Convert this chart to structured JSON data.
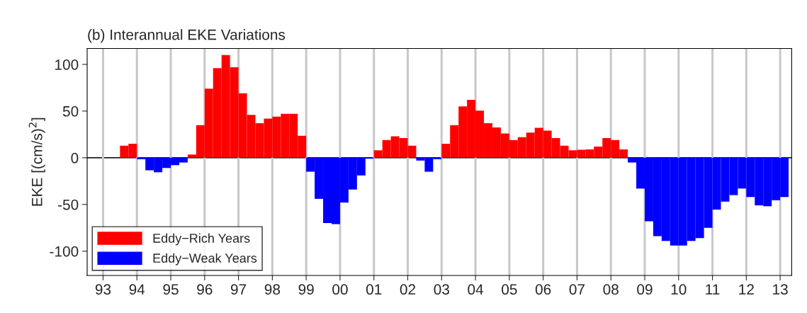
{
  "chart_data": {
    "type": "bar",
    "title": "(b) Interannual EKE Variations",
    "ylabel": "EKE [(cm/s)$^{2}$]",
    "x": [
      1993.625,
      1993.875,
      1994.125,
      1994.375,
      1994.625,
      1994.875,
      1995.125,
      1995.375,
      1995.625,
      1995.875,
      1996.125,
      1996.375,
      1996.625,
      1996.875,
      1997.125,
      1997.375,
      1997.625,
      1997.875,
      1998.125,
      1998.375,
      1998.625,
      1998.875,
      1999.125,
      1999.375,
      1999.625,
      1999.875,
      2000.125,
      2000.375,
      2000.625,
      2000.875,
      2001.125,
      2001.375,
      2001.625,
      2001.875,
      2002.125,
      2002.375,
      2002.625,
      2002.875,
      2003.125,
      2003.375,
      2003.625,
      2003.875,
      2004.125,
      2004.375,
      2004.625,
      2004.875,
      2005.125,
      2005.375,
      2005.625,
      2005.875,
      2006.125,
      2006.375,
      2006.625,
      2006.875,
      2007.125,
      2007.375,
      2007.625,
      2007.875,
      2008.125,
      2008.375,
      2008.625,
      2008.875,
      2009.125,
      2009.375,
      2009.625,
      2009.875,
      2010.125,
      2010.375,
      2010.625,
      2010.875,
      2011.125,
      2011.375,
      2011.625,
      2011.875,
      2012.125,
      2012.375,
      2012.625,
      2012.875,
      2013.125
    ],
    "series": [
      {
        "name": "Eddy−Rich Years",
        "color": "#ff0000",
        "values": [
          13,
          15,
          null,
          null,
          null,
          null,
          null,
          null,
          3.5,
          35,
          74,
          96,
          110,
          97,
          69,
          46,
          37,
          42,
          44,
          47,
          47,
          23.5,
          null,
          null,
          null,
          null,
          null,
          null,
          null,
          null,
          8,
          19,
          23,
          21,
          13,
          null,
          null,
          null,
          15,
          35,
          55,
          62,
          50.5,
          37,
          32.5,
          26,
          19,
          22,
          27,
          32,
          29,
          21,
          13,
          8,
          8.5,
          9,
          12,
          21,
          19,
          9,
          null,
          null,
          null,
          null,
          null,
          null,
          null,
          null,
          null,
          null,
          null,
          null,
          null,
          null,
          null,
          null,
          null,
          null,
          null
        ]
      },
      {
        "name": "Eddy−Weak Years",
        "color": "#0000ff",
        "values": [
          null,
          null,
          -1.5,
          -13.5,
          -15.5,
          -11,
          -8,
          -5,
          null,
          null,
          null,
          null,
          null,
          null,
          null,
          null,
          null,
          null,
          null,
          null,
          null,
          null,
          -15,
          -44,
          -70,
          -71,
          -48,
          -34,
          -19,
          -1,
          null,
          null,
          null,
          null,
          null,
          -3,
          -15,
          -1.5,
          null,
          null,
          null,
          null,
          null,
          null,
          null,
          null,
          null,
          null,
          null,
          null,
          null,
          null,
          null,
          null,
          null,
          null,
          null,
          null,
          null,
          null,
          -5,
          -33,
          -68,
          -84,
          -89,
          -94,
          -94,
          -89,
          -86,
          -75,
          -55.5,
          -47,
          -40,
          -33,
          -42,
          -51,
          -52,
          -45.5,
          -42
        ]
      }
    ],
    "xlim": [
      1992.53,
      2013.34
    ],
    "ylim": [
      -126,
      117
    ],
    "xticks": [
      {
        "value": 1993,
        "label": "93"
      },
      {
        "value": 1994,
        "label": "94"
      },
      {
        "value": 1995,
        "label": "95"
      },
      {
        "value": 1996,
        "label": "96"
      },
      {
        "value": 1997,
        "label": "97"
      },
      {
        "value": 1998,
        "label": "98"
      },
      {
        "value": 1999,
        "label": "99"
      },
      {
        "value": 2000,
        "label": "00"
      },
      {
        "value": 2001,
        "label": "01"
      },
      {
        "value": 2002,
        "label": "02"
      },
      {
        "value": 2003,
        "label": "03"
      },
      {
        "value": 2004,
        "label": "04"
      },
      {
        "value": 2005,
        "label": "05"
      },
      {
        "value": 2006,
        "label": "06"
      },
      {
        "value": 2007,
        "label": "07"
      },
      {
        "value": 2008,
        "label": "08"
      },
      {
        "value": 2009,
        "label": "09"
      },
      {
        "value": 2010,
        "label": "10"
      },
      {
        "value": 2011,
        "label": "11"
      },
      {
        "value": 2012,
        "label": "12"
      },
      {
        "value": 2013,
        "label": "13"
      }
    ],
    "yticks": [
      -100,
      -50,
      0,
      50,
      100
    ],
    "ref_lines": [
      {
        "axis": "y",
        "value": 0,
        "color": "#000000"
      }
    ],
    "grid": "x",
    "legend": "bottom left"
  }
}
